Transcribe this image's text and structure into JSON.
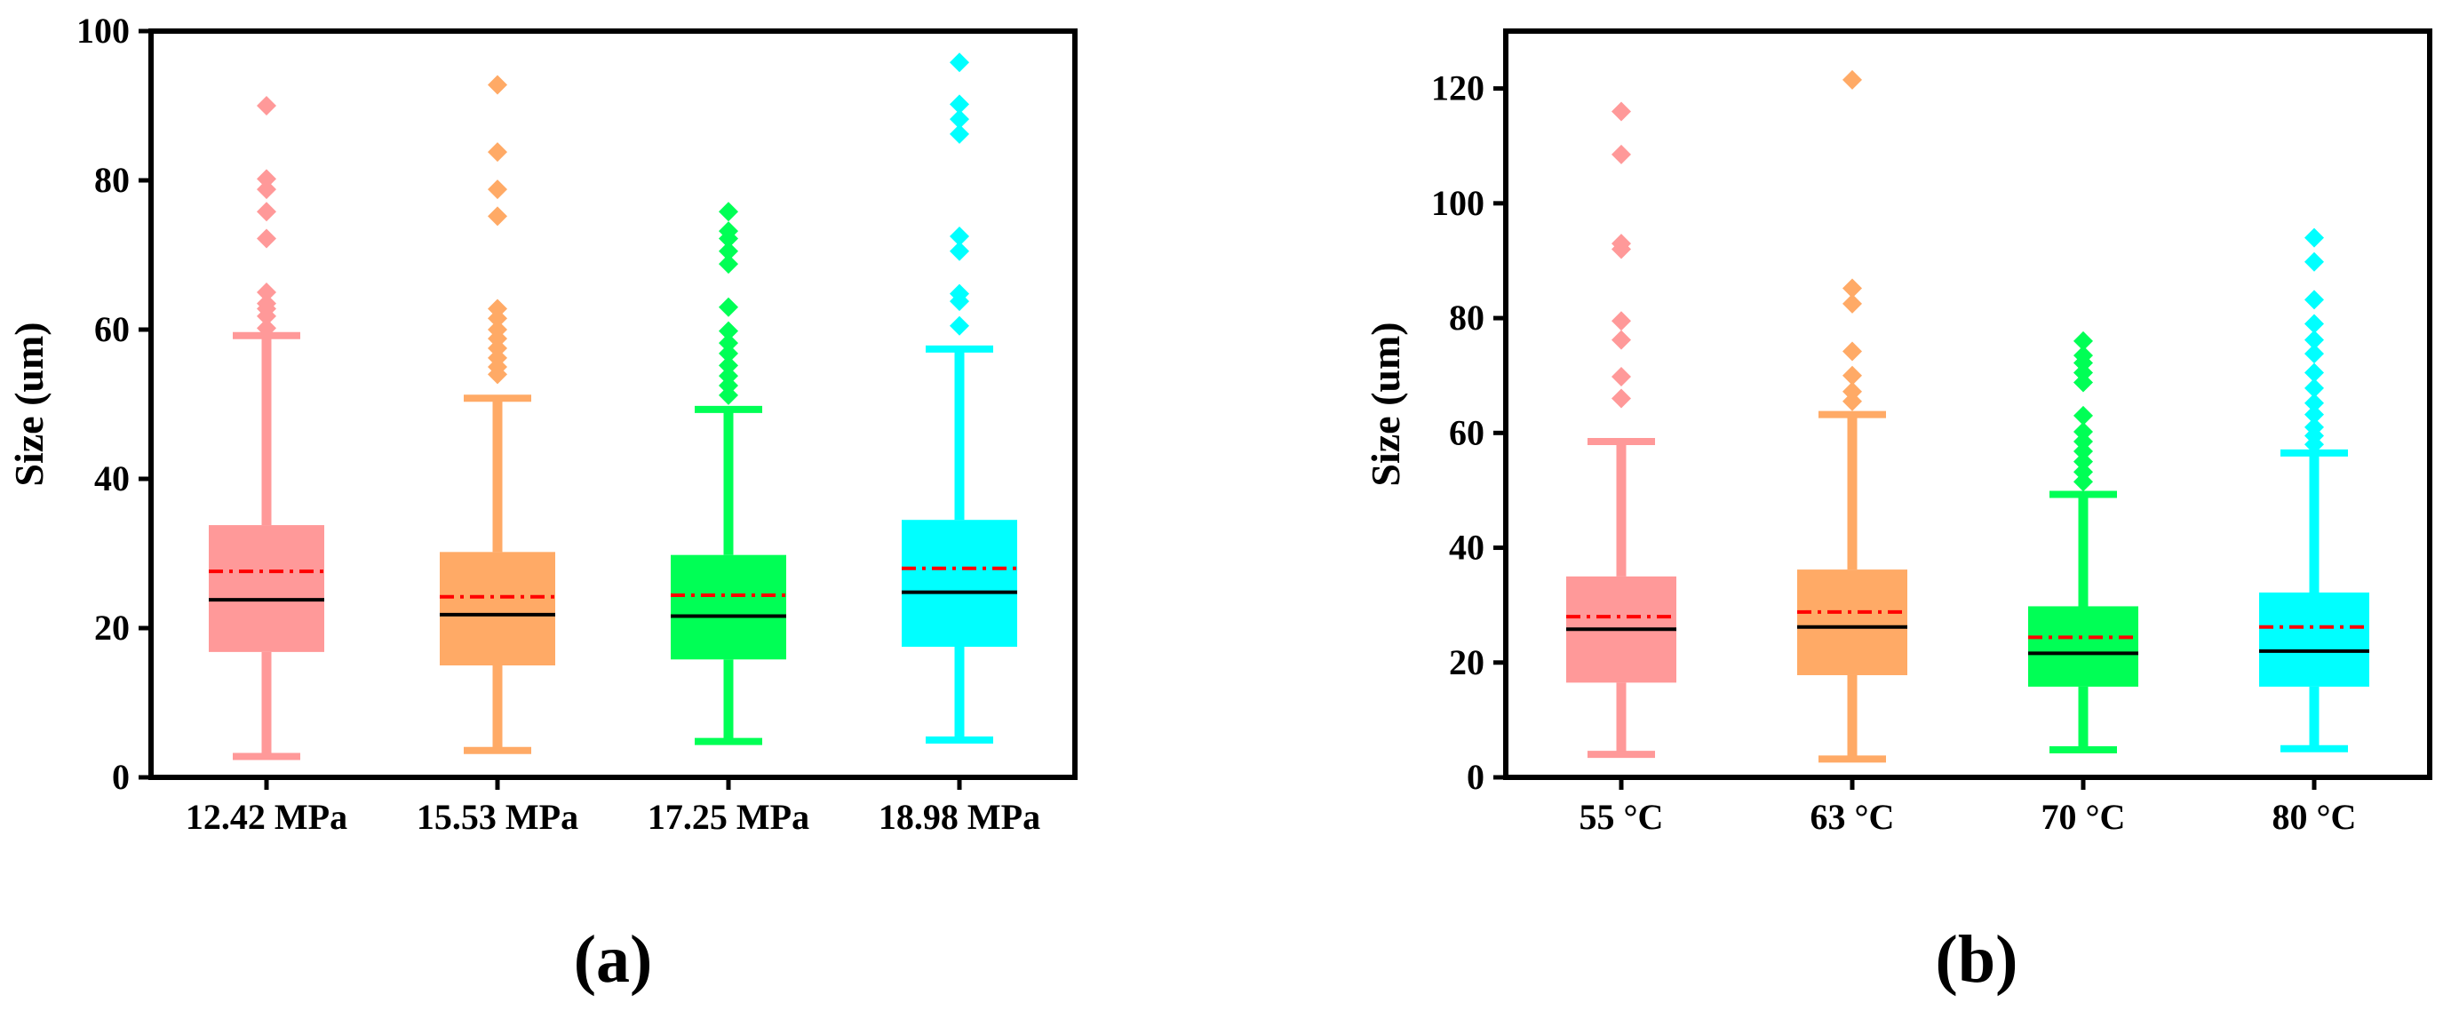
{
  "chart_data": [
    {
      "type": "box",
      "panel_label": "(a)",
      "ylabel": "Size (um)",
      "ylim": [
        0,
        100
      ],
      "yticks": [
        0,
        20,
        40,
        60,
        80,
        100
      ],
      "yticklabels": [
        "0",
        "20",
        "40",
        "60",
        "80",
        "100"
      ],
      "categories": [
        "12.42 MPa",
        "15.53 MPa",
        "17.25 MPa",
        "18.98 MPa"
      ],
      "series": [
        {
          "name": "12.42 MPa",
          "color": "#ff9999",
          "whisker_low": 2.8,
          "q1": 16.8,
          "median": 23.8,
          "mean": 27.6,
          "q3": 33.8,
          "whisker_high": 59.2,
          "outliers": [
            60.2,
            61.8,
            62.8,
            63.5,
            65.0,
            72.2,
            75.8,
            78.8,
            80.2,
            90.0
          ]
        },
        {
          "name": "15.53 MPa",
          "color": "#ffaa66",
          "whisker_low": 3.6,
          "q1": 15.0,
          "median": 21.8,
          "mean": 24.2,
          "q3": 30.2,
          "whisker_high": 50.8,
          "outliers": [
            54.0,
            55.0,
            56.2,
            57.5,
            58.8,
            60.0,
            61.5,
            62.8,
            75.2,
            78.8,
            83.8,
            92.8
          ]
        },
        {
          "name": "17.25 MPa",
          "color": "#00ff55",
          "whisker_low": 4.8,
          "q1": 15.8,
          "median": 21.6,
          "mean": 24.4,
          "q3": 29.8,
          "whisker_high": 49.3,
          "outliers": [
            51.2,
            52.5,
            53.8,
            55.2,
            56.8,
            58.2,
            59.8,
            63.0,
            68.8,
            70.5,
            72.2,
            73.2,
            75.8
          ]
        },
        {
          "name": "18.98 MPa",
          "color": "#00ffff",
          "whisker_low": 5.0,
          "q1": 17.5,
          "median": 24.8,
          "mean": 28.0,
          "q3": 34.5,
          "whisker_high": 57.4,
          "outliers": [
            60.5,
            63.8,
            64.8,
            70.5,
            72.5,
            86.2,
            88.2,
            90.2,
            95.8
          ]
        }
      ]
    },
    {
      "type": "box",
      "panel_label": "(b)",
      "ylabel": "Size (um)",
      "ylim": [
        0,
        130
      ],
      "yticks": [
        0,
        20,
        40,
        60,
        80,
        100,
        120
      ],
      "yticklabels": [
        "0",
        "20",
        "40",
        "60",
        "80",
        "100",
        "120"
      ],
      "categories": [
        "55 °C",
        "63 °C",
        "70 °C",
        "80 °C"
      ],
      "series": [
        {
          "name": "55 °C",
          "color": "#ff9999",
          "whisker_low": 4.0,
          "q1": 16.5,
          "median": 25.8,
          "mean": 28.0,
          "q3": 35.0,
          "whisker_high": 58.5,
          "outliers": [
            66.0,
            69.8,
            76.2,
            79.5,
            92.0,
            93.0,
            108.5,
            116.0
          ]
        },
        {
          "name": "63 °C",
          "color": "#ffaa66",
          "whisker_low": 3.2,
          "q1": 17.8,
          "median": 26.2,
          "mean": 28.8,
          "q3": 36.2,
          "whisker_high": 63.2,
          "outliers": [
            65.5,
            67.2,
            70.0,
            74.2,
            82.5,
            85.2,
            121.5
          ]
        },
        {
          "name": "70 °C",
          "color": "#00ff55",
          "whisker_low": 4.8,
          "q1": 15.8,
          "median": 21.6,
          "mean": 24.4,
          "q3": 29.8,
          "whisker_high": 49.3,
          "outliers": [
            51.5,
            53.2,
            55.0,
            56.8,
            58.5,
            60.2,
            63.0,
            68.8,
            70.5,
            72.2,
            73.5,
            76.0
          ]
        },
        {
          "name": "80 °C",
          "color": "#00ffff",
          "whisker_low": 5.0,
          "q1": 15.8,
          "median": 22.0,
          "mean": 26.2,
          "q3": 32.2,
          "whisker_high": 56.5,
          "outliers": [
            58.0,
            59.5,
            61.0,
            63.2,
            65.2,
            67.8,
            70.5,
            73.8,
            76.2,
            79.0,
            83.2,
            89.8,
            94.0
          ]
        }
      ]
    }
  ],
  "legend_meaning": {
    "median_line_color": "#000000",
    "mean_line_color": "#ff0000"
  }
}
